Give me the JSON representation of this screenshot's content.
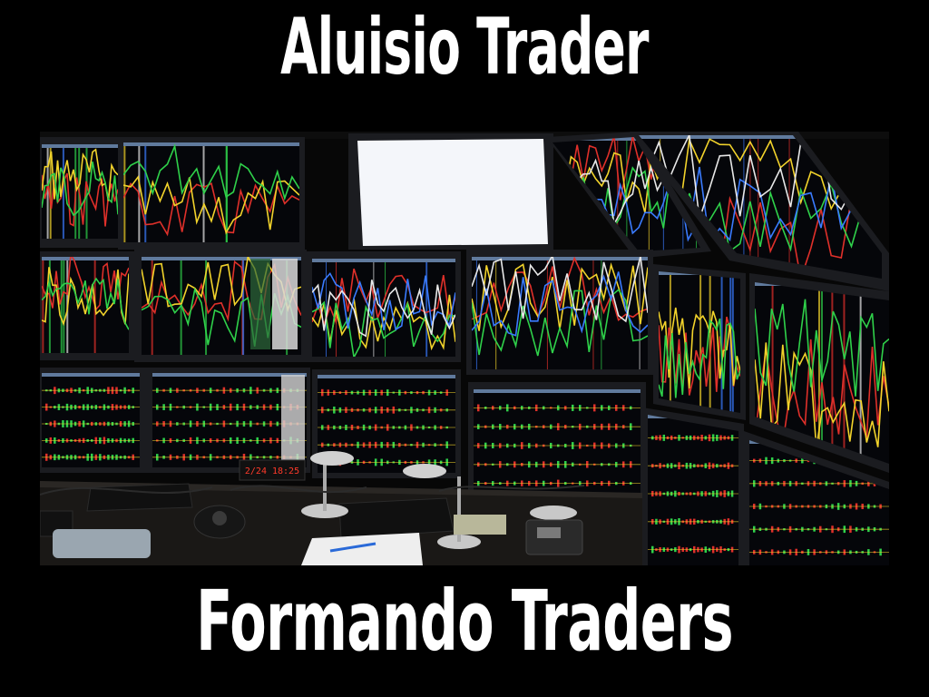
{
  "header": {
    "title": "Aluisio Trader"
  },
  "footer": {
    "subtitle": "Formando Traders"
  },
  "photo": {
    "subject": "trading-desk-multi-monitor-photo",
    "clock_text": "2/24 18:25",
    "colors": {
      "background": "#000000",
      "text": "#ffffff",
      "screen": "#05060a",
      "bezel": "#1b1c20",
      "line_red": "#e0302a",
      "line_yellow": "#f2d32b",
      "line_green": "#2fd14a",
      "line_blue": "#3a7bff",
      "line_white": "#e8e8e8",
      "desk": "#1a1816",
      "blank_screen": "#f4f6fa"
    }
  }
}
